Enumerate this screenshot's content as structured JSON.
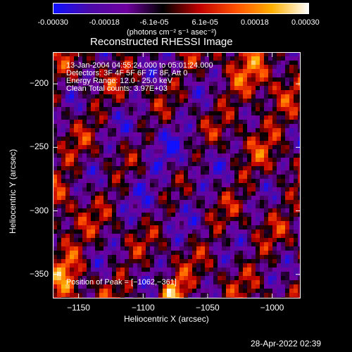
{
  "colorbar": {
    "ticks": [
      "-0.00030",
      "-0.00018",
      "-6.1e-05",
      "6.1e-05",
      "0.00018",
      "0.00030"
    ],
    "units": "(photons cm⁻² s⁻¹ asec⁻²)"
  },
  "chart_data": {
    "type": "heatmap",
    "title": "Reconstructed RHESSI Image",
    "xlabel": "Heliocentric X (arcsec)",
    "ylabel": "Heliocentric Y (arcsec)",
    "xlim": [
      -1170,
      -978
    ],
    "ylim": [
      -369,
      -175
    ],
    "xticks": [
      -1150,
      -1100,
      -1050,
      -1000
    ],
    "xtick_labels": [
      "−1150",
      "−1100",
      "−1050",
      "−1000"
    ],
    "yticks": [
      -350,
      -300,
      -250,
      -200
    ],
    "ytick_labels": [
      "−350",
      "−300",
      "−250",
      "−200"
    ],
    "colorscale": {
      "min": -0.0003,
      "max": 0.0003,
      "colors": [
        "#1010ff",
        "#4b0aa8",
        "#7000a0",
        "#000000",
        "#c00000",
        "#ff5000",
        "#ffb000",
        "#ffffff"
      ]
    },
    "annotations": [
      "13-Jan-2004 04:55:24.000 to 05:01:24.000",
      "Detectors: 3F 4F 5F 6F 7F 8F, Att 0",
      "Energy Range: 12.0 - 25.0 keV",
      "Clean     Total counts: 3.97E+03"
    ],
    "peak_label": "Position of Peak = [−1062,−361]"
  },
  "timestamp": "28-Apr-2022 02:39"
}
